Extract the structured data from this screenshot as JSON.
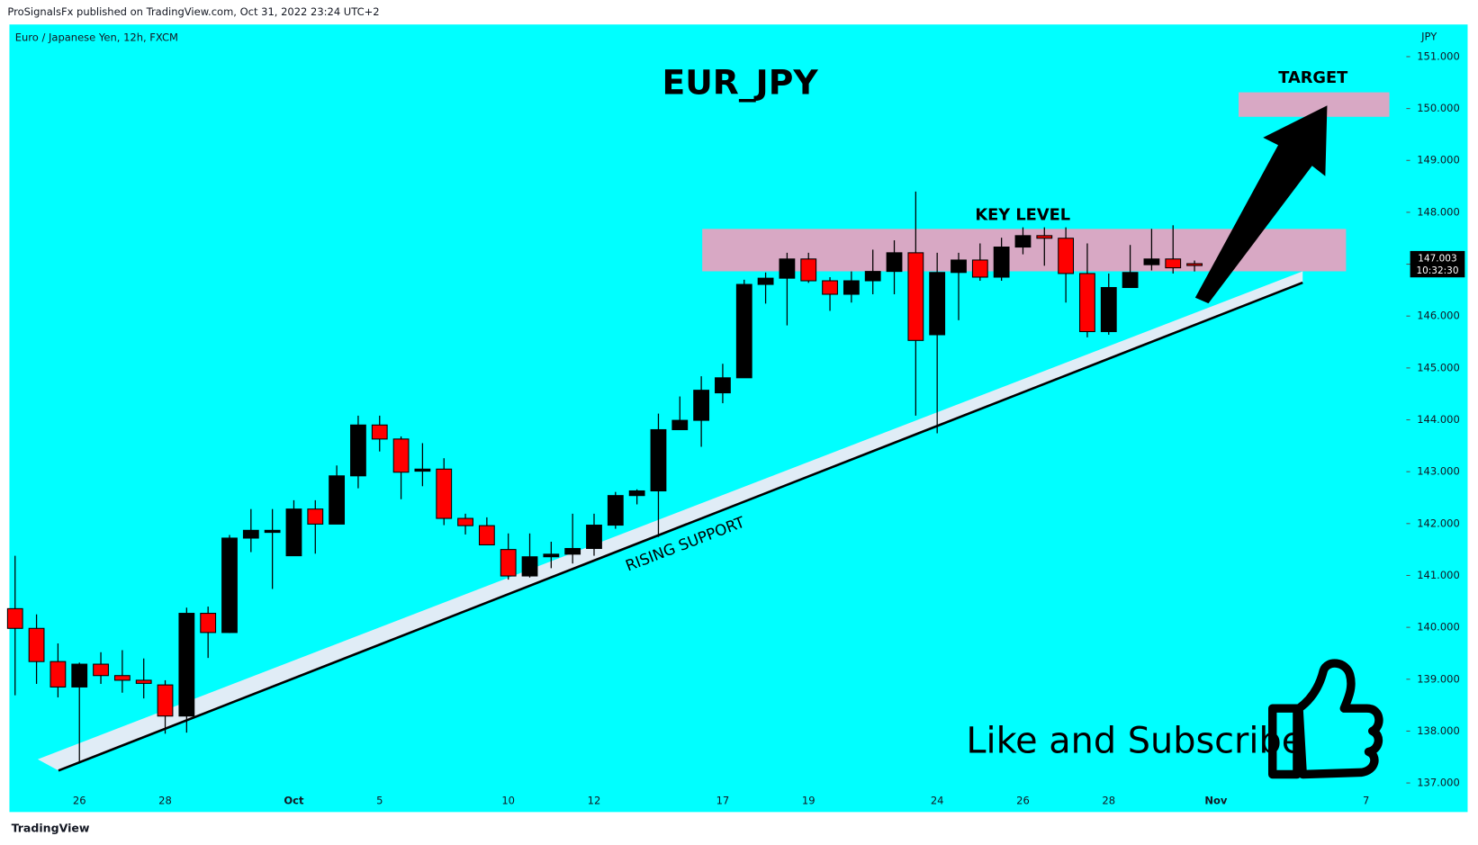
{
  "header": "ProSignalsFx published on TradingView.com, Oct 31, 2022 23:24 UTC+2",
  "footer": "TradingView",
  "chart_data": {
    "type": "candlestick",
    "symbol": "Euro / Japanese Yen, 12h, FXCM",
    "title": "EUR_JPY",
    "currency": "JPY",
    "annotations": {
      "target": "TARGET",
      "key_level": "KEY LEVEL",
      "support": "RISING SUPPORT",
      "cta": "Like and Subscribe"
    },
    "last_price_label": "147.003",
    "countdown": "10:32:30",
    "up_color": "#000000",
    "down_color": "#ff0000",
    "categories": [
      null,
      null,
      null,
      "26",
      null,
      null,
      null,
      "28",
      null,
      null,
      null,
      null,
      null,
      "Oct",
      null,
      null,
      null,
      "5",
      null,
      null,
      null,
      null,
      null,
      "10",
      null,
      null,
      null,
      "12",
      null,
      null,
      null,
      null,
      null,
      "17",
      null,
      null,
      null,
      "19",
      null,
      null,
      null,
      null,
      null,
      "24",
      null,
      null,
      null,
      "26",
      null,
      null,
      null,
      "28",
      null,
      null,
      null,
      null,
      "Nov",
      null,
      null,
      null,
      null,
      null,
      null,
      "7",
      null
    ],
    "open": [
      140.36,
      139.98,
      139.34,
      138.85,
      139.29,
      139.07,
      138.98,
      138.89,
      138.29,
      140.27,
      139.9,
      141.72,
      141.83,
      141.38,
      142.28,
      141.99,
      142.92,
      143.9,
      143.63,
      143.01,
      143.05,
      142.1,
      141.96,
      141.5,
      140.99,
      141.36,
      141.41,
      141.52,
      141.97,
      142.54,
      142.63,
      143.81,
      143.99,
      144.52,
      144.81,
      146.61,
      146.73,
      147.1,
      146.68,
      146.42,
      146.68,
      146.86,
      147.22,
      145.64,
      146.84,
      147.08,
      146.75,
      147.33,
      147.55,
      147.5,
      146.82,
      145.7,
      146.55,
      146.99,
      147.1,
      147.01,
      null,
      null,
      null,
      null,
      null,
      null,
      null,
      null,
      null
    ],
    "high": [
      141.38,
      140.25,
      139.69,
      139.32,
      139.52,
      139.56,
      139.4,
      138.98,
      140.38,
      140.4,
      141.78,
      142.28,
      142.28,
      142.45,
      142.45,
      143.12,
      144.08,
      144.08,
      143.68,
      143.55,
      143.26,
      142.19,
      142.12,
      141.81,
      141.81,
      141.65,
      142.19,
      142.19,
      142.61,
      142.66,
      144.12,
      144.45,
      144.84,
      145.08,
      146.7,
      146.84,
      147.22,
      147.22,
      146.75,
      146.86,
      147.28,
      147.46,
      148.4,
      147.22,
      147.22,
      147.4,
      147.51,
      147.71,
      147.71,
      147.71,
      147.4,
      146.82,
      147.37,
      147.68,
      147.75,
      147.07,
      null,
      null,
      null,
      null,
      null,
      null,
      null,
      null,
      null
    ],
    "low": [
      138.69,
      138.91,
      138.65,
      137.38,
      138.91,
      138.74,
      138.63,
      137.95,
      137.97,
      139.41,
      139.89,
      141.45,
      140.74,
      141.38,
      141.42,
      141.99,
      142.68,
      143.39,
      142.47,
      142.72,
      141.97,
      141.79,
      141.59,
      140.92,
      140.96,
      141.14,
      141.23,
      141.38,
      141.9,
      142.37,
      141.74,
      143.81,
      143.48,
      144.32,
      144.81,
      146.24,
      145.82,
      146.64,
      146.1,
      146.26,
      146.42,
      146.42,
      144.08,
      143.74,
      145.92,
      146.68,
      146.68,
      147.19,
      146.97,
      146.26,
      145.59,
      145.64,
      146.55,
      146.88,
      146.82,
      146.86,
      null,
      null,
      null,
      null,
      null,
      null,
      null,
      null,
      null
    ],
    "close": [
      139.98,
      139.34,
      138.85,
      139.29,
      139.07,
      138.98,
      138.92,
      138.29,
      140.27,
      139.9,
      141.72,
      141.87,
      141.87,
      142.28,
      141.99,
      142.92,
      143.9,
      143.63,
      142.99,
      143.05,
      142.1,
      141.96,
      141.59,
      140.99,
      141.36,
      141.41,
      141.52,
      141.97,
      142.54,
      142.63,
      143.81,
      143.99,
      144.57,
      144.81,
      146.61,
      146.73,
      147.1,
      146.68,
      146.42,
      146.68,
      146.86,
      147.22,
      145.53,
      146.84,
      147.08,
      146.75,
      147.33,
      147.55,
      147.5,
      146.82,
      145.7,
      146.55,
      146.84,
      147.1,
      146.93,
      147.0,
      null,
      null,
      null,
      null,
      null,
      null,
      null,
      null,
      null
    ],
    "ylim": [
      136.44,
      151.62
    ],
    "yticks": [
      {
        "value": 137,
        "label": "137.000"
      },
      {
        "value": 138,
        "label": "138.000"
      },
      {
        "value": 139,
        "label": "139.000"
      },
      {
        "value": 140,
        "label": "140.000"
      },
      {
        "value": 141,
        "label": "141.000"
      },
      {
        "value": 142,
        "label": "142.000"
      },
      {
        "value": 143,
        "label": "143.000"
      },
      {
        "value": 144,
        "label": "144.000"
      },
      {
        "value": 145,
        "label": "145.000"
      },
      {
        "value": 146,
        "label": "146.000"
      },
      {
        "value": 147,
        "label": "147.000"
      },
      {
        "value": 148,
        "label": "148.000"
      },
      {
        "value": 149,
        "label": "149.000"
      },
      {
        "value": 150,
        "label": "150.000"
      },
      {
        "value": 151,
        "label": "151.000"
      }
    ],
    "grid": false
  }
}
